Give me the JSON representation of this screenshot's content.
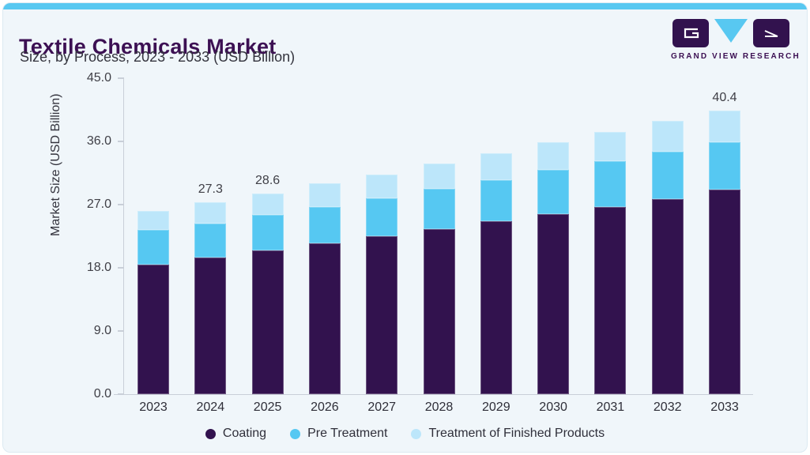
{
  "header": {
    "title": "Textile Chemicals Market",
    "subtitle": "Size, by Process, 2023 - 2033 (USD Billion)"
  },
  "logo": {
    "text": "GRAND VIEW RESEARCH",
    "block_color": "#32124E",
    "triangle_color": "#58C8F1"
  },
  "colors": {
    "accent_top_bar": "#58C8F1",
    "card_background": "#F0F6FA",
    "title_text": "#3C1053",
    "axis_line": "#C9CFD8",
    "tick_text": "#3F3F46"
  },
  "chart_data": {
    "type": "bar",
    "stacked": true,
    "title": "Textile Chemicals Market Size, by Process, 2023 - 2033 (USD Billion)",
    "ylabel": "Market Size (USD Billion)",
    "xlabel": "",
    "ylim": [
      0,
      45
    ],
    "grid": false,
    "legend_position": "bottom",
    "yticks": [
      {
        "value": 0,
        "label": "0.0"
      },
      {
        "value": 9,
        "label": "9.0"
      },
      {
        "value": 18,
        "label": "18.0"
      },
      {
        "value": 27,
        "label": "27.0"
      },
      {
        "value": 36,
        "label": "36.0"
      },
      {
        "value": 45,
        "label": "45.0"
      }
    ],
    "categories": [
      "2023",
      "2024",
      "2025",
      "2026",
      "2027",
      "2028",
      "2029",
      "2030",
      "2031",
      "2032",
      "2033"
    ],
    "series": [
      {
        "name": "Coating",
        "color": "#32124E",
        "values": [
          18.5,
          19.5,
          20.5,
          21.5,
          22.5,
          23.5,
          24.6,
          25.7,
          26.7,
          27.8,
          29.1
        ]
      },
      {
        "name": "Pre Treatment",
        "color": "#56C8F2",
        "values": [
          4.9,
          4.8,
          5.0,
          5.2,
          5.4,
          5.7,
          5.9,
          6.2,
          6.5,
          6.7,
          6.8
        ]
      },
      {
        "name": "Treatment of Finished Products",
        "color": "#BCE6FA",
        "values": [
          2.7,
          3.0,
          3.1,
          3.3,
          3.4,
          3.7,
          3.8,
          4.0,
          4.2,
          4.4,
          4.5
        ]
      }
    ],
    "totals": [
      26.1,
      27.3,
      28.6,
      30.0,
      31.3,
      32.9,
      34.3,
      35.9,
      37.4,
      38.9,
      40.4
    ],
    "bar_labels": [
      "",
      "27.3",
      "28.6",
      "",
      "",
      "",
      "",
      "",
      "",
      "",
      "40.4"
    ]
  }
}
